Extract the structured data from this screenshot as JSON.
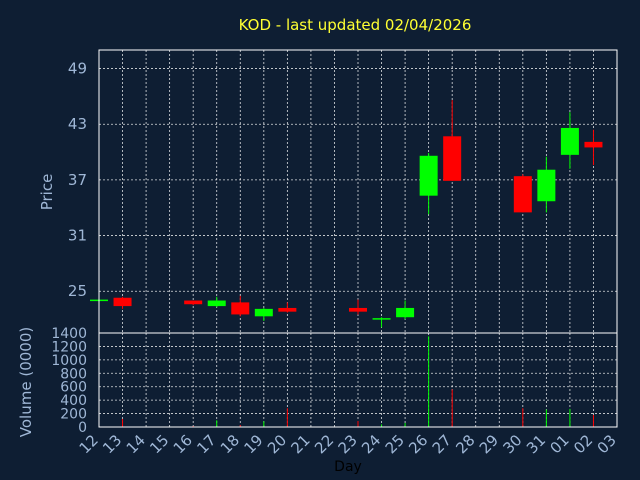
{
  "chart_data": {
    "type": "candlestick",
    "title": "KOD - last updated 02/04/2026",
    "ylabel": "Price",
    "volume_label": "Volume (0000)",
    "xlabel": "Day",
    "price_ylim": [
      20.5,
      51
    ],
    "price_ticks": [
      25,
      31,
      37,
      43,
      49
    ],
    "volume_ylim": [
      0,
      1400
    ],
    "volume_ticks": [
      0,
      200,
      400,
      600,
      800,
      1000,
      1200,
      1400
    ],
    "up_color": "#00ff00",
    "down_color": "#ff0000",
    "days": [
      "12",
      "13",
      "14",
      "15",
      "16",
      "17",
      "18",
      "19",
      "20",
      "21",
      "22",
      "23",
      "24",
      "25",
      "26",
      "27",
      "28",
      "29",
      "30",
      "31",
      "01",
      "02",
      "03"
    ],
    "candles": [
      {
        "day": "12",
        "open": 24.0,
        "high": 24.1,
        "low": 23.9,
        "close": 24.1,
        "volume": 5
      },
      {
        "day": "13",
        "open": 24.3,
        "high": 24.4,
        "low": 23.1,
        "close": 23.4,
        "volume": 120
      },
      {
        "day": "16",
        "open": 24.0,
        "high": 24.0,
        "low": 23.5,
        "close": 23.6,
        "volume": 15
      },
      {
        "day": "17",
        "open": 23.4,
        "high": 24.4,
        "low": 23.3,
        "close": 24.0,
        "volume": 100
      },
      {
        "day": "18",
        "open": 23.8,
        "high": 24.5,
        "low": 22.3,
        "close": 22.5,
        "volume": 30
      },
      {
        "day": "19",
        "open": 22.3,
        "high": 23.2,
        "low": 21.8,
        "close": 23.1,
        "volume": 85
      },
      {
        "day": "20",
        "open": 23.2,
        "high": 23.8,
        "low": 22.7,
        "close": 22.8,
        "volume": 280
      },
      {
        "day": "23",
        "open": 23.2,
        "high": 24.1,
        "low": 22.5,
        "close": 22.8,
        "volume": 90
      },
      {
        "day": "24",
        "open": 22.0,
        "high": 22.2,
        "low": 21.1,
        "close": 22.1,
        "volume": 40
      },
      {
        "day": "25",
        "open": 22.2,
        "high": 24.0,
        "low": 22.0,
        "close": 23.2,
        "volume": 60
      },
      {
        "day": "26",
        "open": 35.3,
        "high": 39.9,
        "low": 33.3,
        "close": 39.6,
        "volume": 1350
      },
      {
        "day": "27",
        "open": 41.7,
        "high": 45.6,
        "low": 36.9,
        "close": 36.9,
        "volume": 560
      },
      {
        "day": "30",
        "open": 37.4,
        "high": 37.6,
        "low": 33.5,
        "close": 33.5,
        "volume": 280
      },
      {
        "day": "31",
        "open": 34.7,
        "high": 39.5,
        "low": 33.5,
        "close": 38.1,
        "volume": 260
      },
      {
        "day": "01",
        "open": 39.7,
        "high": 44.3,
        "low": 38.2,
        "close": 42.6,
        "volume": 270
      },
      {
        "day": "02",
        "open": 41.1,
        "high": 42.4,
        "low": 38.6,
        "close": 40.5,
        "volume": 180
      }
    ]
  }
}
